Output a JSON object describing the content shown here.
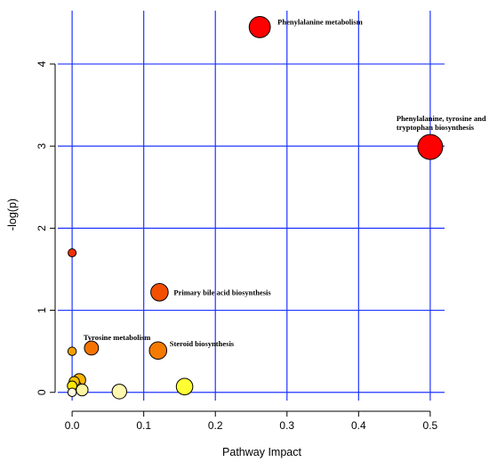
{
  "chart_data": {
    "type": "scatter",
    "title": "",
    "xlabel": "Pathway Impact",
    "ylabel": "-log(p)",
    "xlim": [
      -0.02,
      0.52
    ],
    "ylim": [
      -0.1,
      4.65
    ],
    "x_ticks": [
      0.0,
      0.1,
      0.2,
      0.3,
      0.4,
      0.5
    ],
    "x_tick_labels": [
      "0.0",
      "0.1",
      "0.2",
      "0.3",
      "0.4",
      "0.5"
    ],
    "y_ticks": [
      0,
      1,
      2,
      3,
      4
    ],
    "y_tick_labels": [
      "0",
      "1",
      "2",
      "3",
      "4"
    ],
    "grid": true,
    "grid_color": "#1f35ff",
    "size_encodes": "Pathway Impact",
    "color_encodes": "-log(p) (white/yellow low to red high)",
    "points": [
      {
        "x": 0.262,
        "y": 4.45,
        "size": 0.8,
        "color": "#ff0000",
        "label": "Phenylalanine metabolism"
      },
      {
        "x": 0.5,
        "y": 2.99,
        "size": 1.0,
        "color": "#ff0000",
        "label": "Phenylalanine, tyrosine and tryptophan biosynthesis"
      },
      {
        "x": 0.0,
        "y": 1.7,
        "size": 0.1,
        "color": "#f03000",
        "label": ""
      },
      {
        "x": 0.122,
        "y": 1.22,
        "size": 0.6,
        "color": "#f25000",
        "label": "Primary bile acid biosynthesis"
      },
      {
        "x": 0.12,
        "y": 0.51,
        "size": 0.6,
        "color": "#f57a00",
        "label": "Steroid biosynthesis"
      },
      {
        "x": 0.027,
        "y": 0.54,
        "size": 0.42,
        "color": "#f47300",
        "label": "Tyrosine metabolism"
      },
      {
        "x": 0.0,
        "y": 0.5,
        "size": 0.12,
        "color": "#f5a000",
        "label": ""
      },
      {
        "x": 0.01,
        "y": 0.15,
        "size": 0.35,
        "color": "#f8b500",
        "label": ""
      },
      {
        "x": 0.003,
        "y": 0.13,
        "size": 0.22,
        "color": "#f7c500",
        "label": ""
      },
      {
        "x": 0.005,
        "y": 0.07,
        "size": 0.3,
        "color": "#fae000",
        "label": ""
      },
      {
        "x": 0.0,
        "y": 0.08,
        "size": 0.18,
        "color": "#fbe800",
        "label": ""
      },
      {
        "x": 0.014,
        "y": 0.03,
        "size": 0.3,
        "color": "#fdf5a0",
        "label": ""
      },
      {
        "x": 0.0,
        "y": 0.0,
        "size": 0.12,
        "color": "#fffce0",
        "label": ""
      },
      {
        "x": 0.066,
        "y": 0.01,
        "size": 0.45,
        "color": "#fdf7b0",
        "label": ""
      },
      {
        "x": 0.157,
        "y": 0.07,
        "size": 0.55,
        "color": "#ffff33",
        "label": ""
      }
    ]
  }
}
